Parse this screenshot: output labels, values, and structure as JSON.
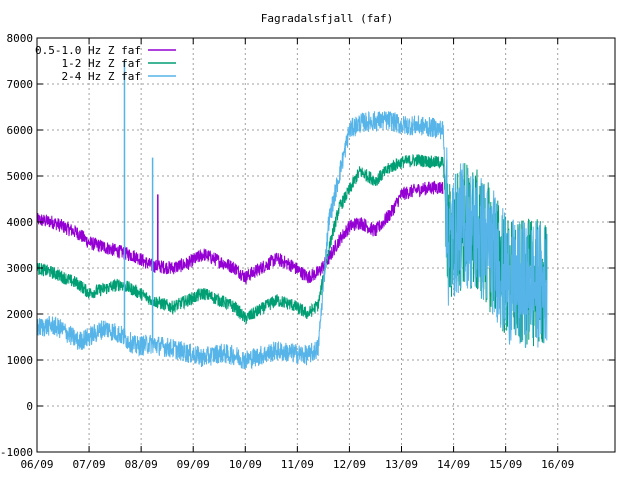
{
  "chart_data": {
    "type": "line",
    "title": "Fagradalsfjall (faf)",
    "xlabel": "",
    "ylabel": "",
    "x_ticks": [
      "06/09",
      "07/09",
      "08/09",
      "09/09",
      "10/09",
      "11/09",
      "12/09",
      "13/09",
      "14/09",
      "15/09",
      "16/09"
    ],
    "x_range_days": [
      6.0,
      17.1
    ],
    "ylim": [
      -1000,
      8000
    ],
    "y_ticks": [
      "-1000",
      "0",
      "1000",
      "2000",
      "3000",
      "4000",
      "5000",
      "6000",
      "7000",
      "8000"
    ],
    "grid": true,
    "legend_position": "top-left",
    "series": [
      {
        "name": "0.5-1.0 Hz Z faf",
        "color": "#9400d3",
        "points": [
          [
            6.0,
            4050
          ],
          [
            6.3,
            4000
          ],
          [
            6.5,
            3900
          ],
          [
            6.8,
            3750
          ],
          [
            7.0,
            3550
          ],
          [
            7.3,
            3450
          ],
          [
            7.6,
            3350
          ],
          [
            7.9,
            3250
          ],
          [
            8.2,
            3050
          ],
          [
            8.6,
            3000
          ],
          [
            8.9,
            3100
          ],
          [
            9.2,
            3300
          ],
          [
            9.5,
            3150
          ],
          [
            9.8,
            3000
          ],
          [
            10.0,
            2800
          ],
          [
            10.3,
            3000
          ],
          [
            10.6,
            3200
          ],
          [
            10.9,
            3050
          ],
          [
            11.2,
            2800
          ],
          [
            11.4,
            2900
          ],
          [
            11.6,
            3200
          ],
          [
            11.8,
            3600
          ],
          [
            12.0,
            3900
          ],
          [
            12.2,
            4000
          ],
          [
            12.5,
            3800
          ],
          [
            12.8,
            4200
          ],
          [
            13.0,
            4600
          ],
          [
            13.3,
            4700
          ],
          [
            13.6,
            4750
          ],
          [
            13.8,
            4750
          ]
        ]
      },
      {
        "name": "1-2 Hz Z faf",
        "color": "#009e73",
        "points": [
          [
            6.0,
            3000
          ],
          [
            6.3,
            2900
          ],
          [
            6.5,
            2800
          ],
          [
            6.8,
            2650
          ],
          [
            7.0,
            2450
          ],
          [
            7.3,
            2550
          ],
          [
            7.6,
            2650
          ],
          [
            7.9,
            2500
          ],
          [
            8.2,
            2300
          ],
          [
            8.6,
            2150
          ],
          [
            8.9,
            2300
          ],
          [
            9.2,
            2450
          ],
          [
            9.5,
            2300
          ],
          [
            9.8,
            2150
          ],
          [
            10.0,
            1900
          ],
          [
            10.3,
            2100
          ],
          [
            10.6,
            2300
          ],
          [
            10.9,
            2200
          ],
          [
            11.2,
            2000
          ],
          [
            11.4,
            2200
          ],
          [
            11.6,
            3400
          ],
          [
            11.8,
            4300
          ],
          [
            12.0,
            4700
          ],
          [
            12.2,
            5100
          ],
          [
            12.5,
            4900
          ],
          [
            12.8,
            5200
          ],
          [
            13.0,
            5300
          ],
          [
            13.3,
            5350
          ],
          [
            13.6,
            5300
          ],
          [
            13.8,
            5300
          ],
          [
            13.9,
            3500
          ],
          [
            14.2,
            4000
          ],
          [
            14.5,
            3700
          ],
          [
            14.8,
            3300
          ],
          [
            15.0,
            2800
          ],
          [
            15.2,
            2600
          ],
          [
            15.5,
            2700
          ],
          [
            15.8,
            2600
          ]
        ]
      },
      {
        "name": "2-4 Hz Z faf",
        "color": "#56b4e9",
        "points": [
          [
            6.0,
            1700
          ],
          [
            6.3,
            1750
          ],
          [
            6.5,
            1650
          ],
          [
            6.8,
            1400
          ],
          [
            7.0,
            1500
          ],
          [
            7.3,
            1700
          ],
          [
            7.6,
            1550
          ],
          [
            7.9,
            1300
          ],
          [
            8.2,
            1350
          ],
          [
            8.6,
            1250
          ],
          [
            8.9,
            1150
          ],
          [
            9.2,
            1050
          ],
          [
            9.5,
            1150
          ],
          [
            9.8,
            1100
          ],
          [
            10.0,
            1000
          ],
          [
            10.3,
            1100
          ],
          [
            10.6,
            1200
          ],
          [
            10.9,
            1150
          ],
          [
            11.2,
            1100
          ],
          [
            11.4,
            1250
          ],
          [
            11.6,
            4000
          ],
          [
            11.8,
            5000
          ],
          [
            12.0,
            6000
          ],
          [
            12.2,
            6150
          ],
          [
            12.5,
            6200
          ],
          [
            12.8,
            6200
          ],
          [
            13.0,
            6100
          ],
          [
            13.3,
            6100
          ],
          [
            13.6,
            6050
          ],
          [
            13.8,
            6000
          ],
          [
            13.9,
            3500
          ],
          [
            14.2,
            4000
          ],
          [
            14.5,
            3700
          ],
          [
            14.8,
            3300
          ],
          [
            15.0,
            2800
          ],
          [
            15.2,
            2600
          ],
          [
            15.5,
            2700
          ],
          [
            15.8,
            2600
          ]
        ]
      }
    ],
    "spikes": [
      {
        "series": 2,
        "x": 7.68,
        "y": 7500
      },
      {
        "series": 2,
        "x": 8.22,
        "y": 5400
      },
      {
        "series": 0,
        "x": 8.32,
        "y": 4600
      }
    ]
  }
}
